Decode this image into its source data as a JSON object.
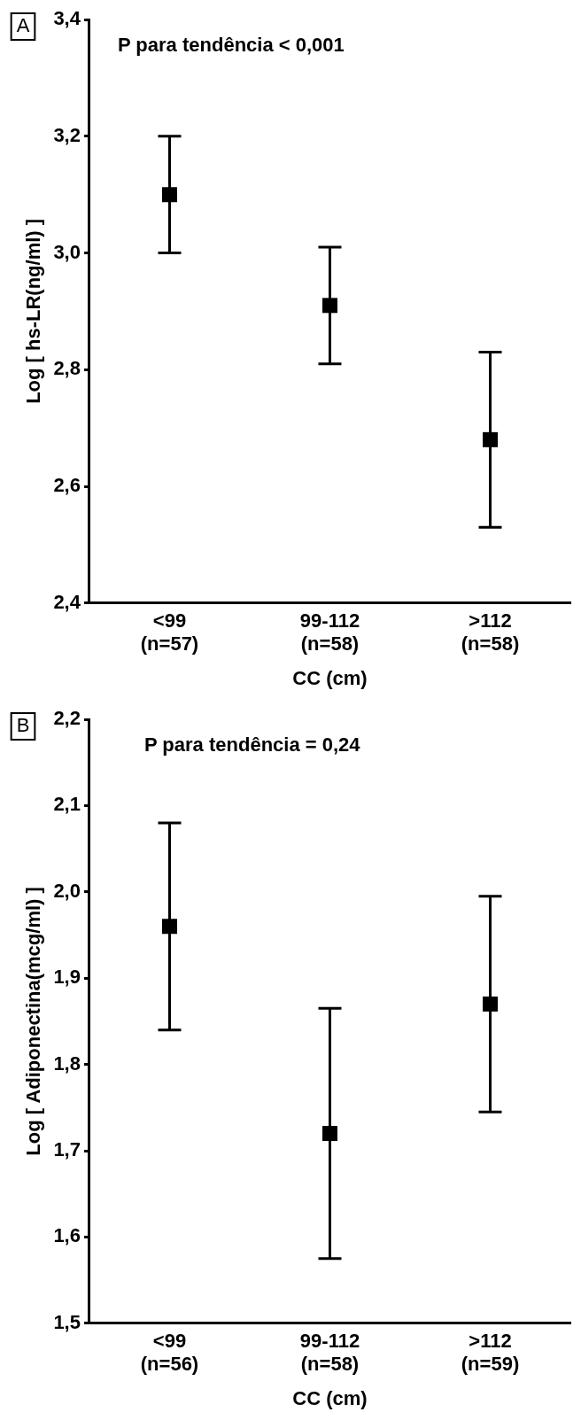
{
  "chart_data": [
    {
      "type": "scatter",
      "categories": [
        "<99\n(n=57)",
        "99-112\n(n=58)",
        ">112\n(n=58)"
      ],
      "values": [
        3.1,
        2.91,
        2.68
      ],
      "errors": [
        0.1,
        0.1,
        0.15
      ],
      "color": "#000000",
      "marker": "square",
      "ylim": [
        2.4,
        3.4
      ],
      "yticks": [
        {
          "value": 2.4,
          "label": "2,4"
        },
        {
          "value": 2.6,
          "label": "2,6"
        },
        {
          "value": 2.8,
          "label": "2,8"
        },
        {
          "value": 3.0,
          "label": "3,0"
        },
        {
          "value": 3.2,
          "label": "3,2"
        },
        {
          "value": 3.4,
          "label": "3,4"
        }
      ],
      "ylabel": "Log [ hs-LR(ng/ml) ]",
      "xlabel": "CC (cm)",
      "annotations": [
        "A",
        "P para tendência < 0,001"
      ],
      "grid": false,
      "legend": false
    },
    {
      "type": "scatter",
      "categories": [
        "<99\n(n=56)",
        "99-112\n(n=58)",
        ">112\n(n=59)"
      ],
      "values": [
        1.96,
        1.72,
        1.87
      ],
      "errors": [
        0.12,
        0.145,
        0.125
      ],
      "color": "#000000",
      "marker": "square",
      "ylim": [
        1.5,
        2.2
      ],
      "yticks": [
        {
          "value": 1.5,
          "label": "1,5"
        },
        {
          "value": 1.6,
          "label": "1,6"
        },
        {
          "value": 1.7,
          "label": "1,7"
        },
        {
          "value": 1.8,
          "label": "1,8"
        },
        {
          "value": 1.9,
          "label": "1,9"
        },
        {
          "value": 2.0,
          "label": "2,0"
        },
        {
          "value": 2.1,
          "label": "2,1"
        },
        {
          "value": 2.2,
          "label": "2,2"
        }
      ],
      "ylabel": "Log [ Adiponectina(mcg/ml) ]",
      "xlabel": "CC (cm)",
      "annotations": [
        "B",
        "P para tendência = 0,24"
      ],
      "grid": false,
      "legend": false
    }
  ]
}
